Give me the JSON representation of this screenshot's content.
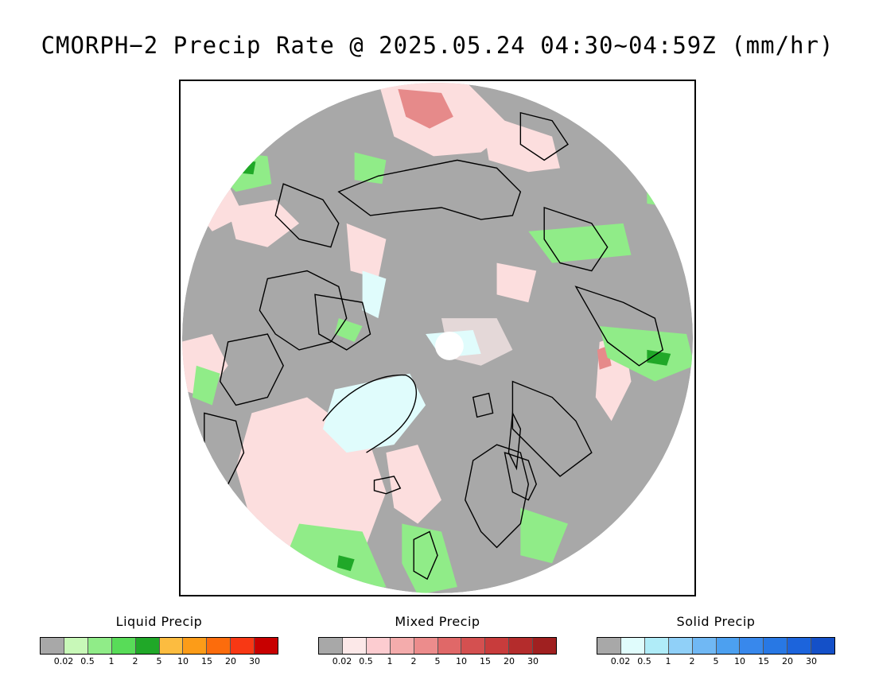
{
  "title": "CMORPH−2 Precip Rate @ 2025.05.24 04:30~04:59Z (mm/hr)",
  "colors": {
    "nodata": "#a8a8a8",
    "background": "#ffffff",
    "coast": "#000000"
  },
  "legends": [
    {
      "title": "Liquid Precip",
      "colors": [
        "#a8a8a8",
        "#c8f8b8",
        "#90ec88",
        "#58dc58",
        "#20a828",
        "#fcbc40",
        "#fc9c18",
        "#fc6c0c",
        "#f83814",
        "#c80000"
      ],
      "ticks": [
        "0.02",
        "0.5",
        "1",
        "2",
        "5",
        "10",
        "15",
        "20",
        "30"
      ]
    },
    {
      "title": "Mixed Precip",
      "colors": [
        "#a8a8a8",
        "#fce8e8",
        "#fcccd0",
        "#f4acac",
        "#ec8c8c",
        "#e06868",
        "#d45050",
        "#c83c3c",
        "#b42c2c",
        "#a02020"
      ],
      "ticks": [
        "0.02",
        "0.5",
        "1",
        "2",
        "5",
        "10",
        "15",
        "20",
        "30"
      ]
    },
    {
      "title": "Solid Precip",
      "colors": [
        "#a8a8a8",
        "#e0fcfc",
        "#b0ecf8",
        "#90d0f8",
        "#70b8f4",
        "#4ca0f0",
        "#3888ec",
        "#2878e4",
        "#1c64dc",
        "#1450c8"
      ],
      "ticks": [
        "0.02",
        "0.5",
        "1",
        "2",
        "5",
        "10",
        "15",
        "20",
        "30"
      ]
    }
  ]
}
